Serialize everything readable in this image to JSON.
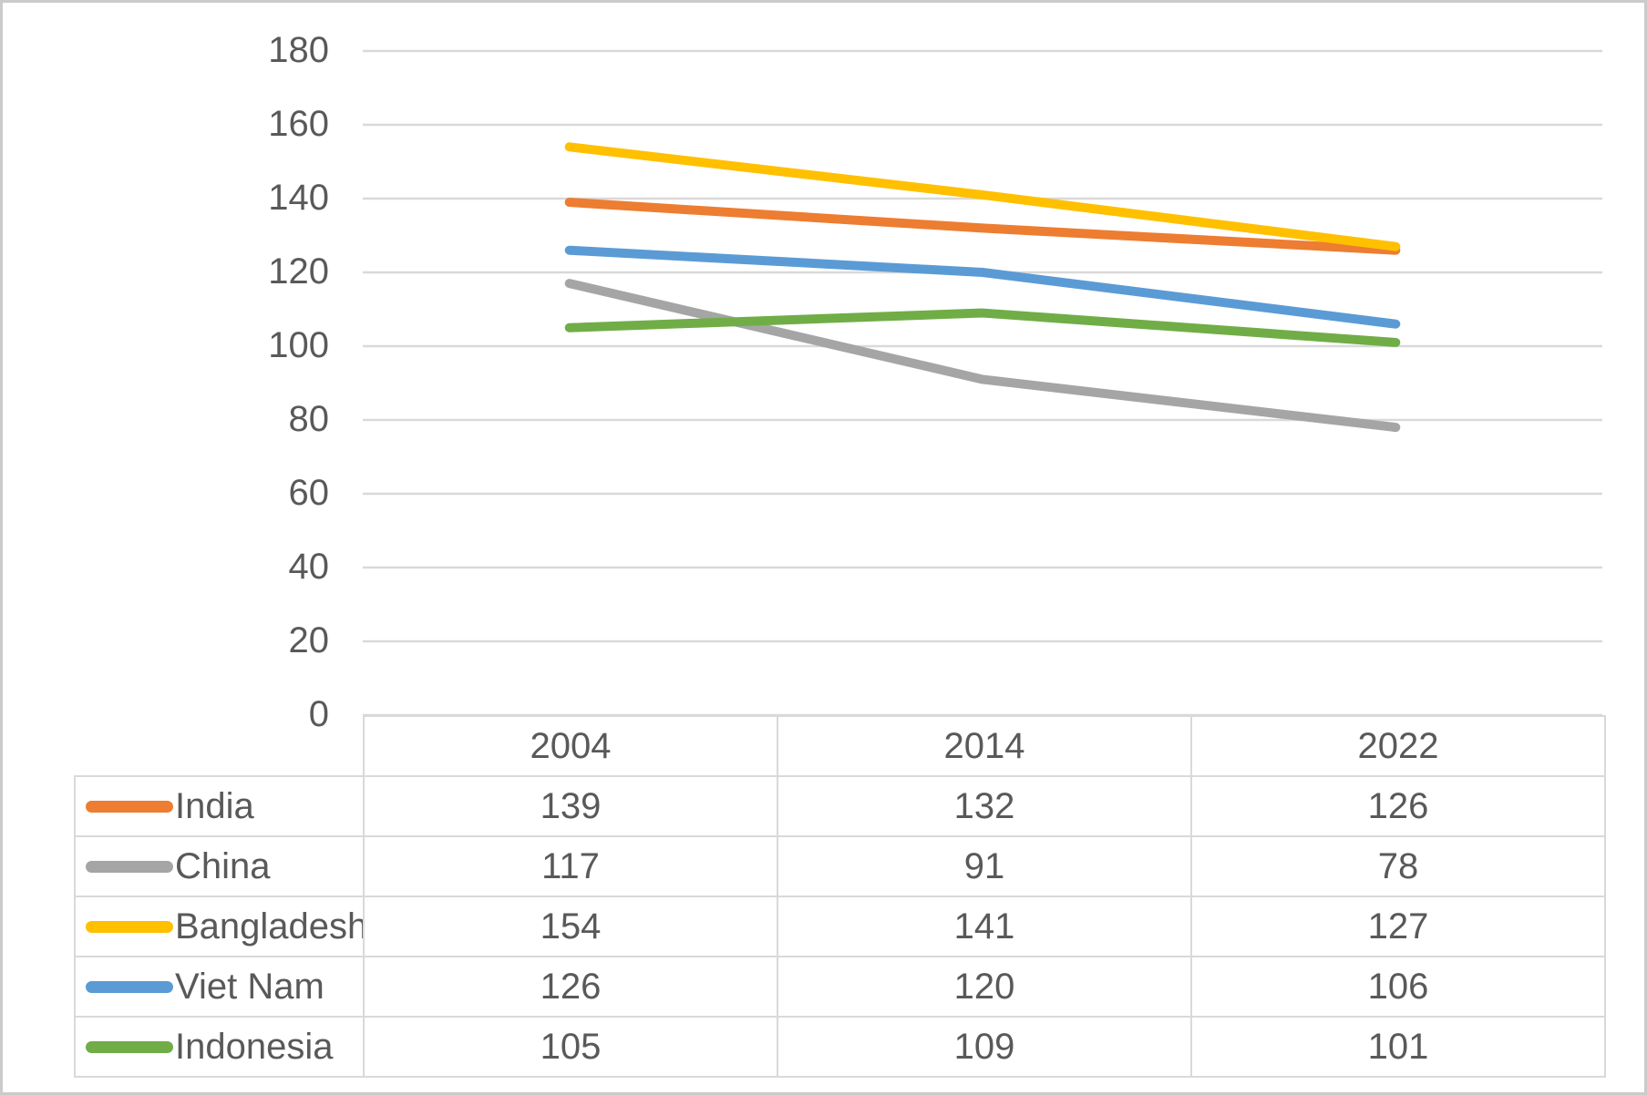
{
  "chart_data": {
    "type": "line",
    "title": "",
    "xlabel": "",
    "ylabel": "",
    "categories": [
      "2004",
      "2014",
      "2022"
    ],
    "series": [
      {
        "name": "India",
        "color": "#ED7D31",
        "values": [
          139,
          132,
          126
        ]
      },
      {
        "name": "China",
        "color": "#A5A5A5",
        "values": [
          117,
          91,
          78
        ]
      },
      {
        "name": "Bangladesh",
        "color": "#FFC000",
        "values": [
          154,
          141,
          127
        ]
      },
      {
        "name": "Viet Nam",
        "color": "#5B9BD5",
        "values": [
          126,
          120,
          106
        ]
      },
      {
        "name": "Indonesia",
        "color": "#70AD47",
        "values": [
          105,
          109,
          101
        ]
      }
    ],
    "ylim": [
      0,
      180
    ],
    "yticks": [
      180,
      160,
      140,
      120,
      100,
      80,
      60,
      40,
      20,
      0
    ],
    "grid": true,
    "legend_position": "data-table-left-column",
    "colors": {
      "gridline": "#D9D9D9",
      "axis_text": "#595959",
      "table_border": "#D9D9D9",
      "table_text": "#595959",
      "background": "#FFFFFF",
      "frame_border": "#CBCBCB"
    }
  }
}
